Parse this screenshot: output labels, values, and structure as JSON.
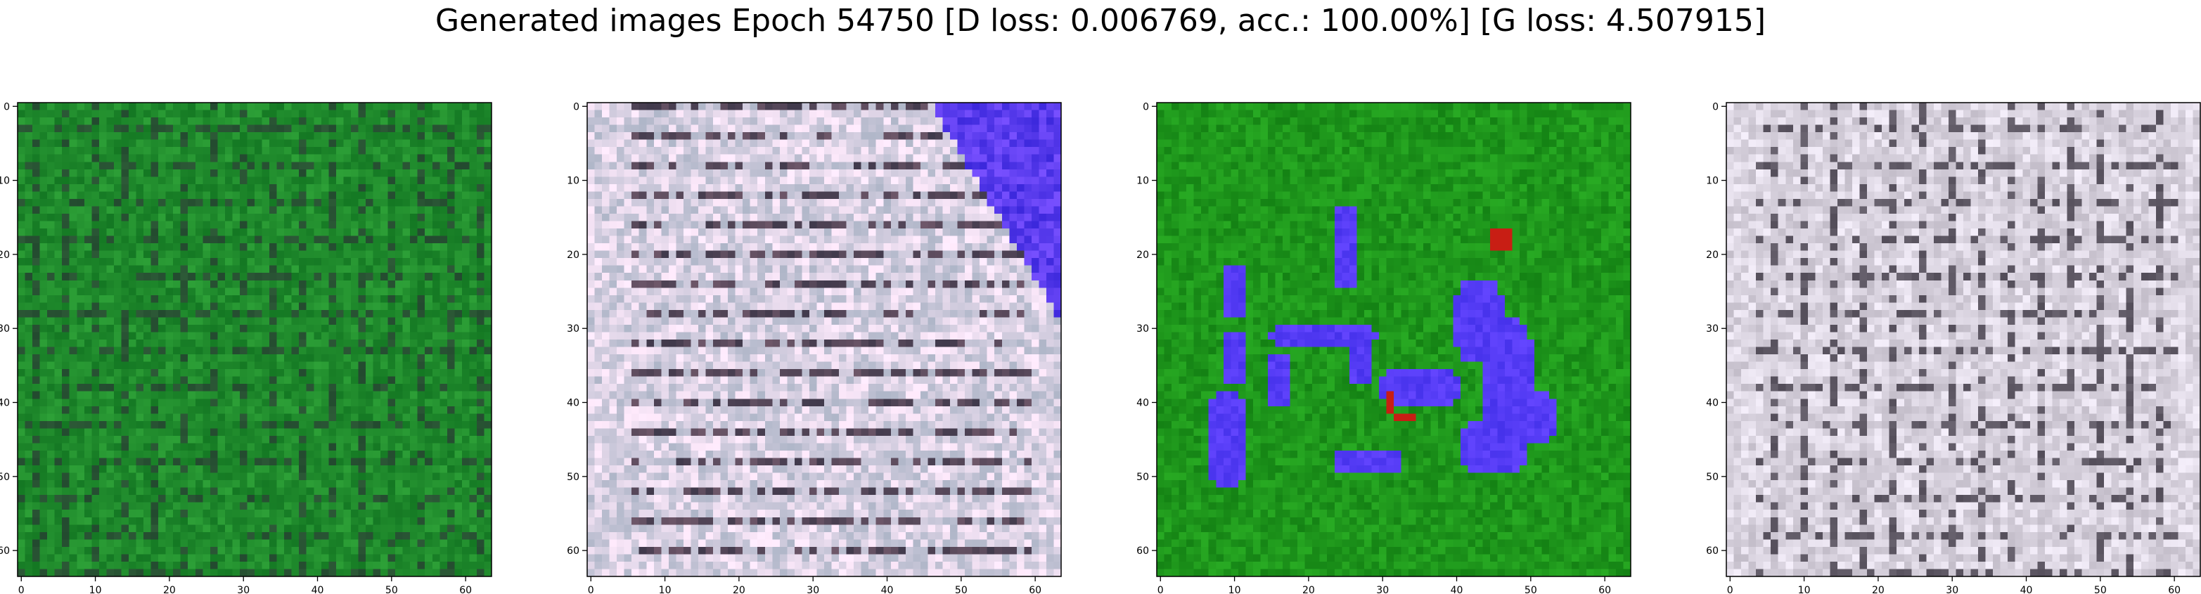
{
  "title": "Generated images Epoch 54750 [D loss: 0.006769, acc.: 100.00%] [G loss: 4.507915]",
  "chart_data": {
    "type": "heatmap",
    "title": "Generated images Epoch 54750 [D loss: 0.006769, acc.: 100.00%] [G loss: 4.507915]",
    "grid": false,
    "image_shape": [
      64,
      64,
      3
    ],
    "xlim": [
      -0.5,
      63.5
    ],
    "ylim": [
      63.5,
      -0.5
    ],
    "x_ticks": [
      0,
      10,
      20,
      30,
      40,
      50,
      60
    ],
    "y_ticks": [
      0,
      10,
      20,
      30,
      40,
      50,
      60
    ],
    "panels": [
      {
        "panel": 1,
        "dominant_color": "#1f8a2a",
        "content": "green noisy pattern with grid-like dark strokes"
      },
      {
        "panel": 2,
        "dominant_color": "#c9c2c8",
        "content": "gray-white noisy texture with blue region in top-right"
      },
      {
        "panel": 3,
        "dominant_color": "#1a8f1a",
        "content": "green background with blue blobs and a few red spots"
      },
      {
        "panel": 4,
        "dominant_color": "#cfc8cc",
        "content": "gray-white noisy texture with dark horizontal/vertical strokes"
      }
    ]
  }
}
